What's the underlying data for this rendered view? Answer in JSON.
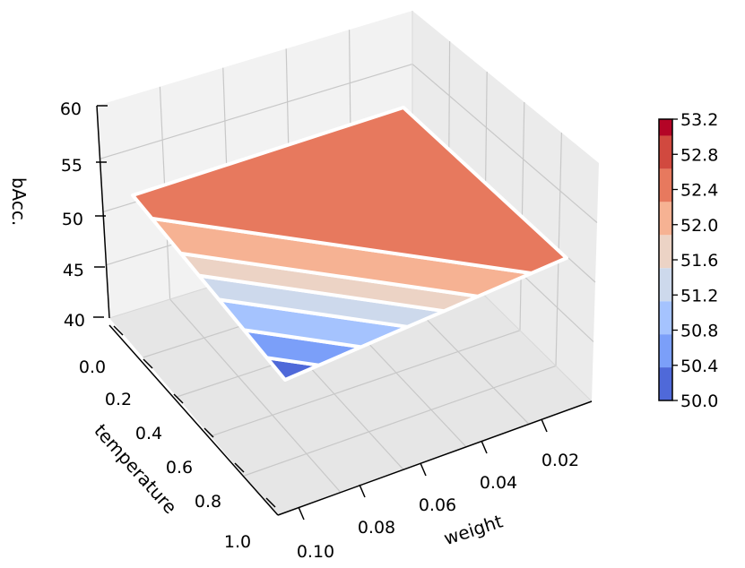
{
  "chart_data": {
    "type": "surface3d",
    "title": "",
    "xlabel": "weight",
    "ylabel": "temperature",
    "zlabel": "bAcc.",
    "x_ticks": [
      "0.02",
      "0.04",
      "0.06",
      "0.08",
      "0.10"
    ],
    "y_ticks": [
      "0.0",
      "0.2",
      "0.4",
      "0.6",
      "0.8",
      "1.0"
    ],
    "z_ticks": [
      "40",
      "45",
      "50",
      "55",
      "60"
    ],
    "zlim": [
      40,
      60
    ],
    "colormap": "coolwarm",
    "grid": true,
    "colorbar": {
      "position": "right",
      "ticks": [
        "50.0",
        "50.4",
        "50.8",
        "51.2",
        "51.6",
        "52.0",
        "52.4",
        "52.8",
        "53.2"
      ],
      "range": [
        50.0,
        53.2
      ],
      "colors": [
        "#4f69d9",
        "#7b9ff9",
        "#a5c3fe",
        "#cdd9ec",
        "#ecd3c5",
        "#f6b293",
        "#e7795e",
        "#d1493f",
        "#b40426"
      ]
    },
    "surface_bands": [
      {
        "range": [
          50.0,
          50.4
        ],
        "color": "#4f69d9"
      },
      {
        "range": [
          50.4,
          50.8
        ],
        "color": "#7b9ff9"
      },
      {
        "range": [
          50.8,
          51.2
        ],
        "color": "#a5c3fe"
      },
      {
        "range": [
          51.2,
          51.6
        ],
        "color": "#cdd9ec"
      },
      {
        "range": [
          51.6,
          52.0
        ],
        "color": "#ecd3c5"
      },
      {
        "range": [
          52.0,
          52.4
        ],
        "color": "#f6b293"
      },
      {
        "range": [
          52.4,
          52.8
        ],
        "color": "#e7795e"
      }
    ]
  }
}
